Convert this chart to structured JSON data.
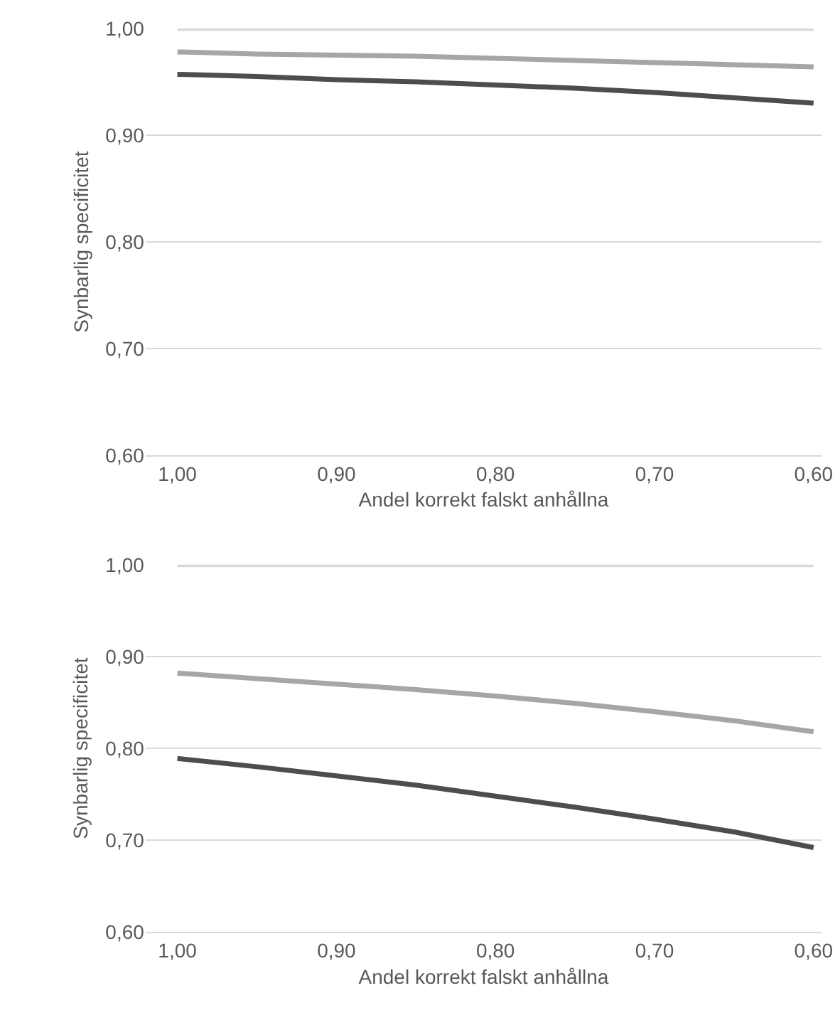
{
  "chart_data": [
    {
      "type": "line",
      "xlabel": "Andel korrekt falskt anhållna",
      "ylabel": "Synbarlig specificitet",
      "x": [
        1.0,
        0.95,
        0.9,
        0.85,
        0.8,
        0.75,
        0.7,
        0.65,
        0.6
      ],
      "series": [
        {
          "color": "#d9d9d9",
          "values": [
            1.0,
            1.0,
            1.0,
            1.0,
            1.0,
            1.0,
            1.0,
            1.0,
            1.0
          ]
        },
        {
          "color": "#a6a6a6",
          "values": [
            0.978,
            0.976,
            0.975,
            0.974,
            0.972,
            0.97,
            0.968,
            0.966,
            0.964
          ]
        },
        {
          "color": "#4d4d4d",
          "values": [
            0.957,
            0.955,
            0.952,
            0.95,
            0.947,
            0.944,
            0.94,
            0.935,
            0.93
          ]
        }
      ],
      "xlim": [
        1.02,
        0.595
      ],
      "xticks": [
        {
          "value": 1.0,
          "label": "1,00"
        },
        {
          "value": 0.9,
          "label": "0,90"
        },
        {
          "value": 0.8,
          "label": "0,80"
        },
        {
          "value": 0.7,
          "label": "0,70"
        },
        {
          "value": 0.6,
          "label": "0,60"
        }
      ],
      "ylim": [
        0.6,
        1.0
      ],
      "yticks": [
        {
          "value": 0.6,
          "label": "0,60"
        },
        {
          "value": 0.7,
          "label": "0,70"
        },
        {
          "value": 0.8,
          "label": "0,80"
        },
        {
          "value": 0.9,
          "label": "0,90"
        },
        {
          "value": 1.0,
          "label": "1,00"
        }
      ],
      "grid": "y",
      "marker": "none",
      "line_style": "solid"
    },
    {
      "type": "line",
      "xlabel": "Andel korrekt falskt anhållna",
      "ylabel": "Synbarlig specificitet",
      "x": [
        1.0,
        0.95,
        0.9,
        0.85,
        0.8,
        0.75,
        0.7,
        0.65,
        0.6
      ],
      "series": [
        {
          "color": "#d9d9d9",
          "values": [
            1.0,
            1.0,
            1.0,
            1.0,
            1.0,
            1.0,
            1.0,
            1.0,
            1.0
          ]
        },
        {
          "color": "#a6a6a6",
          "values": [
            0.882,
            0.876,
            0.87,
            0.864,
            0.857,
            0.849,
            0.84,
            0.83,
            0.818
          ]
        },
        {
          "color": "#4d4d4d",
          "values": [
            0.789,
            0.78,
            0.77,
            0.76,
            0.748,
            0.736,
            0.723,
            0.709,
            0.692
          ]
        }
      ],
      "xlim": [
        1.02,
        0.595
      ],
      "xticks": [
        {
          "value": 1.0,
          "label": "1,00"
        },
        {
          "value": 0.9,
          "label": "0,90"
        },
        {
          "value": 0.8,
          "label": "0,80"
        },
        {
          "value": 0.7,
          "label": "0,70"
        },
        {
          "value": 0.6,
          "label": "0,60"
        }
      ],
      "ylim": [
        0.6,
        1.0
      ],
      "yticks": [
        {
          "value": 0.6,
          "label": "0,60"
        },
        {
          "value": 0.7,
          "label": "0,70"
        },
        {
          "value": 0.8,
          "label": "0,80"
        },
        {
          "value": 0.9,
          "label": "0,90"
        },
        {
          "value": 1.0,
          "label": "1,00"
        }
      ],
      "grid": "y",
      "marker": "none",
      "line_style": "solid"
    }
  ]
}
